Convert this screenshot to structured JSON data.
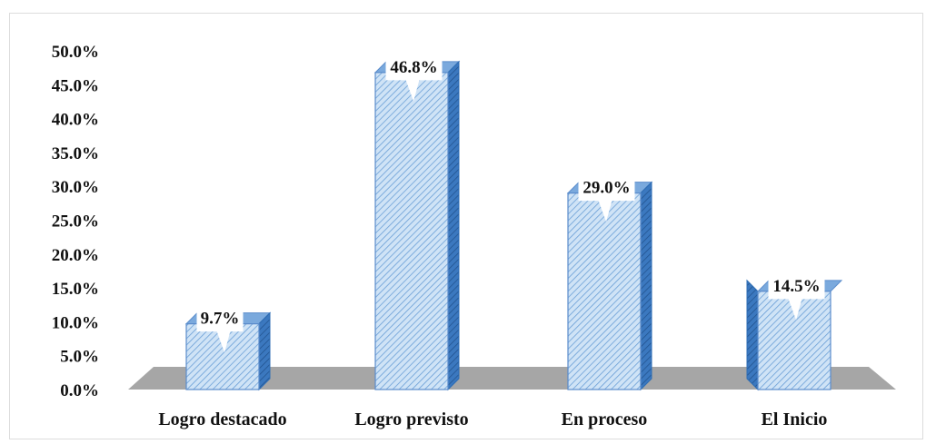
{
  "chart_data": {
    "type": "bar",
    "categories": [
      "Logro destacado",
      "Logro previsto",
      "En proceso",
      "El Inicio"
    ],
    "values": [
      9.7,
      46.8,
      29.0,
      14.5
    ],
    "data_labels": [
      "9.7%",
      "46.8%",
      "29.0%",
      "14.5%"
    ],
    "y_ticks": [
      "0.0%",
      "5.0%",
      "10.0%",
      "15.0%",
      "20.0%",
      "25.0%",
      "30.0%",
      "35.0%",
      "40.0%",
      "45.0%",
      "50.0%"
    ],
    "ylim": [
      0,
      50
    ],
    "grid": false,
    "legend": "none",
    "style": "3d-column-hatched",
    "colors": {
      "bar_fill": "#cfe3f6",
      "bar_hatch": "#6a9fd6",
      "bar_side": "#2e6db4",
      "bar_edge": "#5b8ccb",
      "floor": "#a6a6a6",
      "label_box": "#ffffff"
    }
  }
}
